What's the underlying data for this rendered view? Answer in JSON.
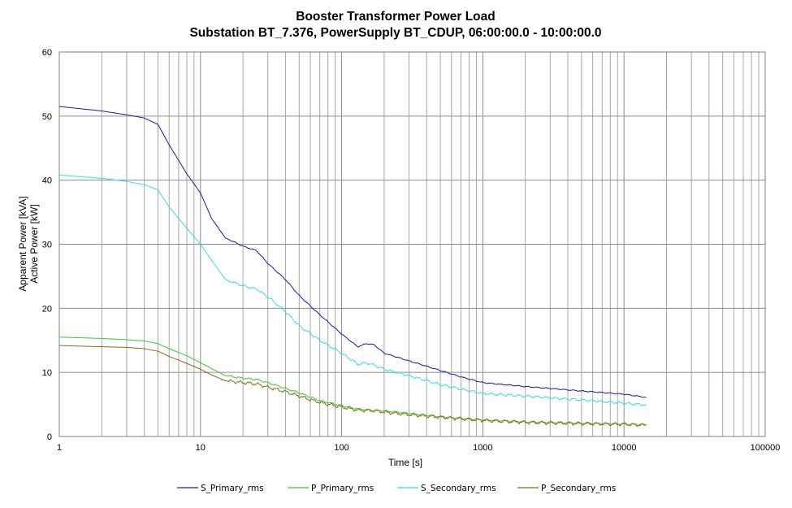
{
  "chart_data": {
    "type": "line",
    "title": "Booster Transformer Power Load",
    "subtitle": "Substation BT_7.376, PowerSupply BT_CDUP, 06:00:00.0 - 10:00:00.0",
    "xlabel": "Time [s]",
    "ylabel": [
      "Apparent Power [kVA]",
      "Active Power [kW]"
    ],
    "x_scale": "log",
    "xlim": [
      1,
      100000
    ],
    "ylim": [
      0,
      60
    ],
    "x_ticks": [
      "1",
      "10",
      "100",
      "1000",
      "10000",
      "100000"
    ],
    "y_ticks": [
      "0",
      "10",
      "20",
      "30",
      "40",
      "50",
      "60"
    ],
    "grid": true,
    "legend_position": "bottom",
    "series": [
      {
        "name": "S_Primary_rms",
        "color": "#1a1aa6",
        "points": [
          [
            1,
            51.5
          ],
          [
            2,
            50.8
          ],
          [
            3,
            50.2
          ],
          [
            4,
            49.7
          ],
          [
            5,
            48.7
          ],
          [
            6,
            45.5
          ],
          [
            8,
            41
          ],
          [
            10,
            38
          ],
          [
            12,
            34
          ],
          [
            15,
            31
          ],
          [
            20,
            29.7
          ],
          [
            25,
            29
          ],
          [
            30,
            27
          ],
          [
            40,
            24.5
          ],
          [
            50,
            22
          ],
          [
            70,
            19
          ],
          [
            100,
            16
          ],
          [
            130,
            14
          ],
          [
            150,
            14.5
          ],
          [
            170,
            14.3
          ],
          [
            200,
            13
          ],
          [
            300,
            11.8
          ],
          [
            500,
            10.3
          ],
          [
            700,
            9.3
          ],
          [
            1000,
            8.4
          ],
          [
            2000,
            7.8
          ],
          [
            5000,
            7.1
          ],
          [
            10000,
            6.6
          ],
          [
            14400,
            6.1
          ]
        ]
      },
      {
        "name": "P_Primary_rms",
        "color": "#33cc33",
        "points": [
          [
            1,
            15.5
          ],
          [
            2,
            15.3
          ],
          [
            3,
            15.1
          ],
          [
            4,
            14.9
          ],
          [
            5,
            14.5
          ],
          [
            6,
            13.7
          ],
          [
            8,
            12.6
          ],
          [
            10,
            11.5
          ],
          [
            12,
            10.6
          ],
          [
            15,
            9.5
          ],
          [
            20,
            9.1
          ],
          [
            25,
            8.9
          ],
          [
            30,
            8.4
          ],
          [
            40,
            7.5
          ],
          [
            50,
            6.8
          ],
          [
            70,
            5.6
          ],
          [
            100,
            4.8
          ],
          [
            130,
            4.3
          ],
          [
            170,
            4.1
          ],
          [
            200,
            4
          ],
          [
            300,
            3.6
          ],
          [
            500,
            3.1
          ],
          [
            1000,
            2.6
          ],
          [
            2000,
            2.3
          ],
          [
            5000,
            2.1
          ],
          [
            10000,
            1.95
          ],
          [
            14400,
            1.85
          ]
        ]
      },
      {
        "name": "S_Secondary_rms",
        "color": "#33e0e0",
        "points": [
          [
            1,
            40.8
          ],
          [
            2,
            40.3
          ],
          [
            3,
            39.8
          ],
          [
            4,
            39.3
          ],
          [
            5,
            38.5
          ],
          [
            6,
            35.8
          ],
          [
            8,
            32.5
          ],
          [
            10,
            30
          ],
          [
            12,
            27.5
          ],
          [
            15,
            24.5
          ],
          [
            20,
            23.5
          ],
          [
            25,
            23
          ],
          [
            30,
            21.8
          ],
          [
            40,
            19.5
          ],
          [
            50,
            17.3
          ],
          [
            70,
            15
          ],
          [
            100,
            13
          ],
          [
            130,
            11.3
          ],
          [
            150,
            11.5
          ],
          [
            170,
            11.1
          ],
          [
            200,
            10.5
          ],
          [
            300,
            9.5
          ],
          [
            500,
            8.1
          ],
          [
            700,
            7.4
          ],
          [
            1000,
            6.7
          ],
          [
            2000,
            6.3
          ],
          [
            5000,
            5.7
          ],
          [
            10000,
            5.2
          ],
          [
            14400,
            4.9
          ]
        ]
      },
      {
        "name": "P_Secondary_rms",
        "color": "#8b6a1a",
        "points": [
          [
            1,
            14.2
          ],
          [
            2,
            14
          ],
          [
            3,
            13.9
          ],
          [
            4,
            13.7
          ],
          [
            5,
            13.3
          ],
          [
            6,
            12.5
          ],
          [
            8,
            11.4
          ],
          [
            10,
            10.5
          ],
          [
            12,
            9.6
          ],
          [
            15,
            8.7
          ],
          [
            20,
            8.4
          ],
          [
            25,
            8.2
          ],
          [
            30,
            7.7
          ],
          [
            40,
            7
          ],
          [
            50,
            6.3
          ],
          [
            70,
            5.3
          ],
          [
            100,
            4.6
          ],
          [
            130,
            4.1
          ],
          [
            170,
            4
          ],
          [
            200,
            3.8
          ],
          [
            300,
            3.4
          ],
          [
            500,
            3
          ],
          [
            1000,
            2.5
          ],
          [
            2000,
            2.2
          ],
          [
            5000,
            2
          ],
          [
            10000,
            1.9
          ],
          [
            14400,
            1.75
          ]
        ]
      }
    ]
  }
}
